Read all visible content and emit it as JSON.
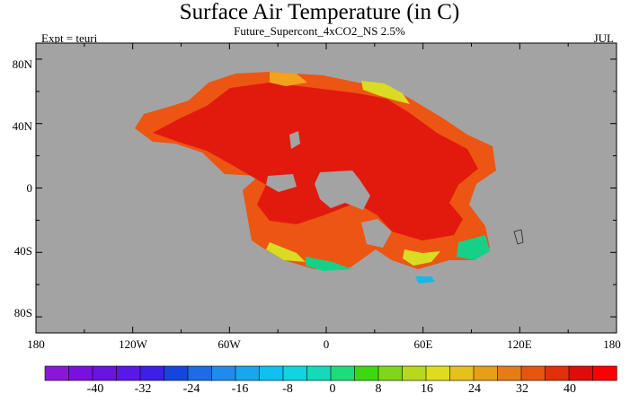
{
  "title": "Surface Air Temperature (in C)",
  "subtitle": "Future_Supercont_4xCO2_NS 2.5%",
  "left_label": "Expt = teuri",
  "right_label": "JUL",
  "y_ticks": [
    "80N",
    "40N",
    "0",
    "40S",
    "80S"
  ],
  "x_ticks": [
    "180",
    "120W",
    "60W",
    "0",
    "60E",
    "120E",
    "180"
  ],
  "colorbar": {
    "labels": [
      "-40",
      "-32",
      "-24",
      "-16",
      "-8",
      "0",
      "8",
      "16",
      "24",
      "32",
      "40"
    ],
    "colors": [
      "#8a17d6",
      "#7a10dd",
      "#6a14e0",
      "#5a18e6",
      "#3d1fe6",
      "#1546dc",
      "#1e6ce4",
      "#1f8ceb",
      "#19a6ec",
      "#11bff0",
      "#12d3e0",
      "#16d9b8",
      "#1fdc7a",
      "#3ed812",
      "#7fd61a",
      "#b7d81e",
      "#dedb21",
      "#e6c01c",
      "#e59f18",
      "#e57c14",
      "#e5560f",
      "#e2300c",
      "#dc0e0a",
      "#ff0000"
    ]
  },
  "map": {
    "ocean_color": "#a3a3a3",
    "palette": {
      "hot": "#e21a0e",
      "warm": "#ed5513",
      "mild": "#f2a21d",
      "cool": "#d9dc22",
      "cold": "#16d08a",
      "ocean_cold": "#18b8e8"
    }
  }
}
